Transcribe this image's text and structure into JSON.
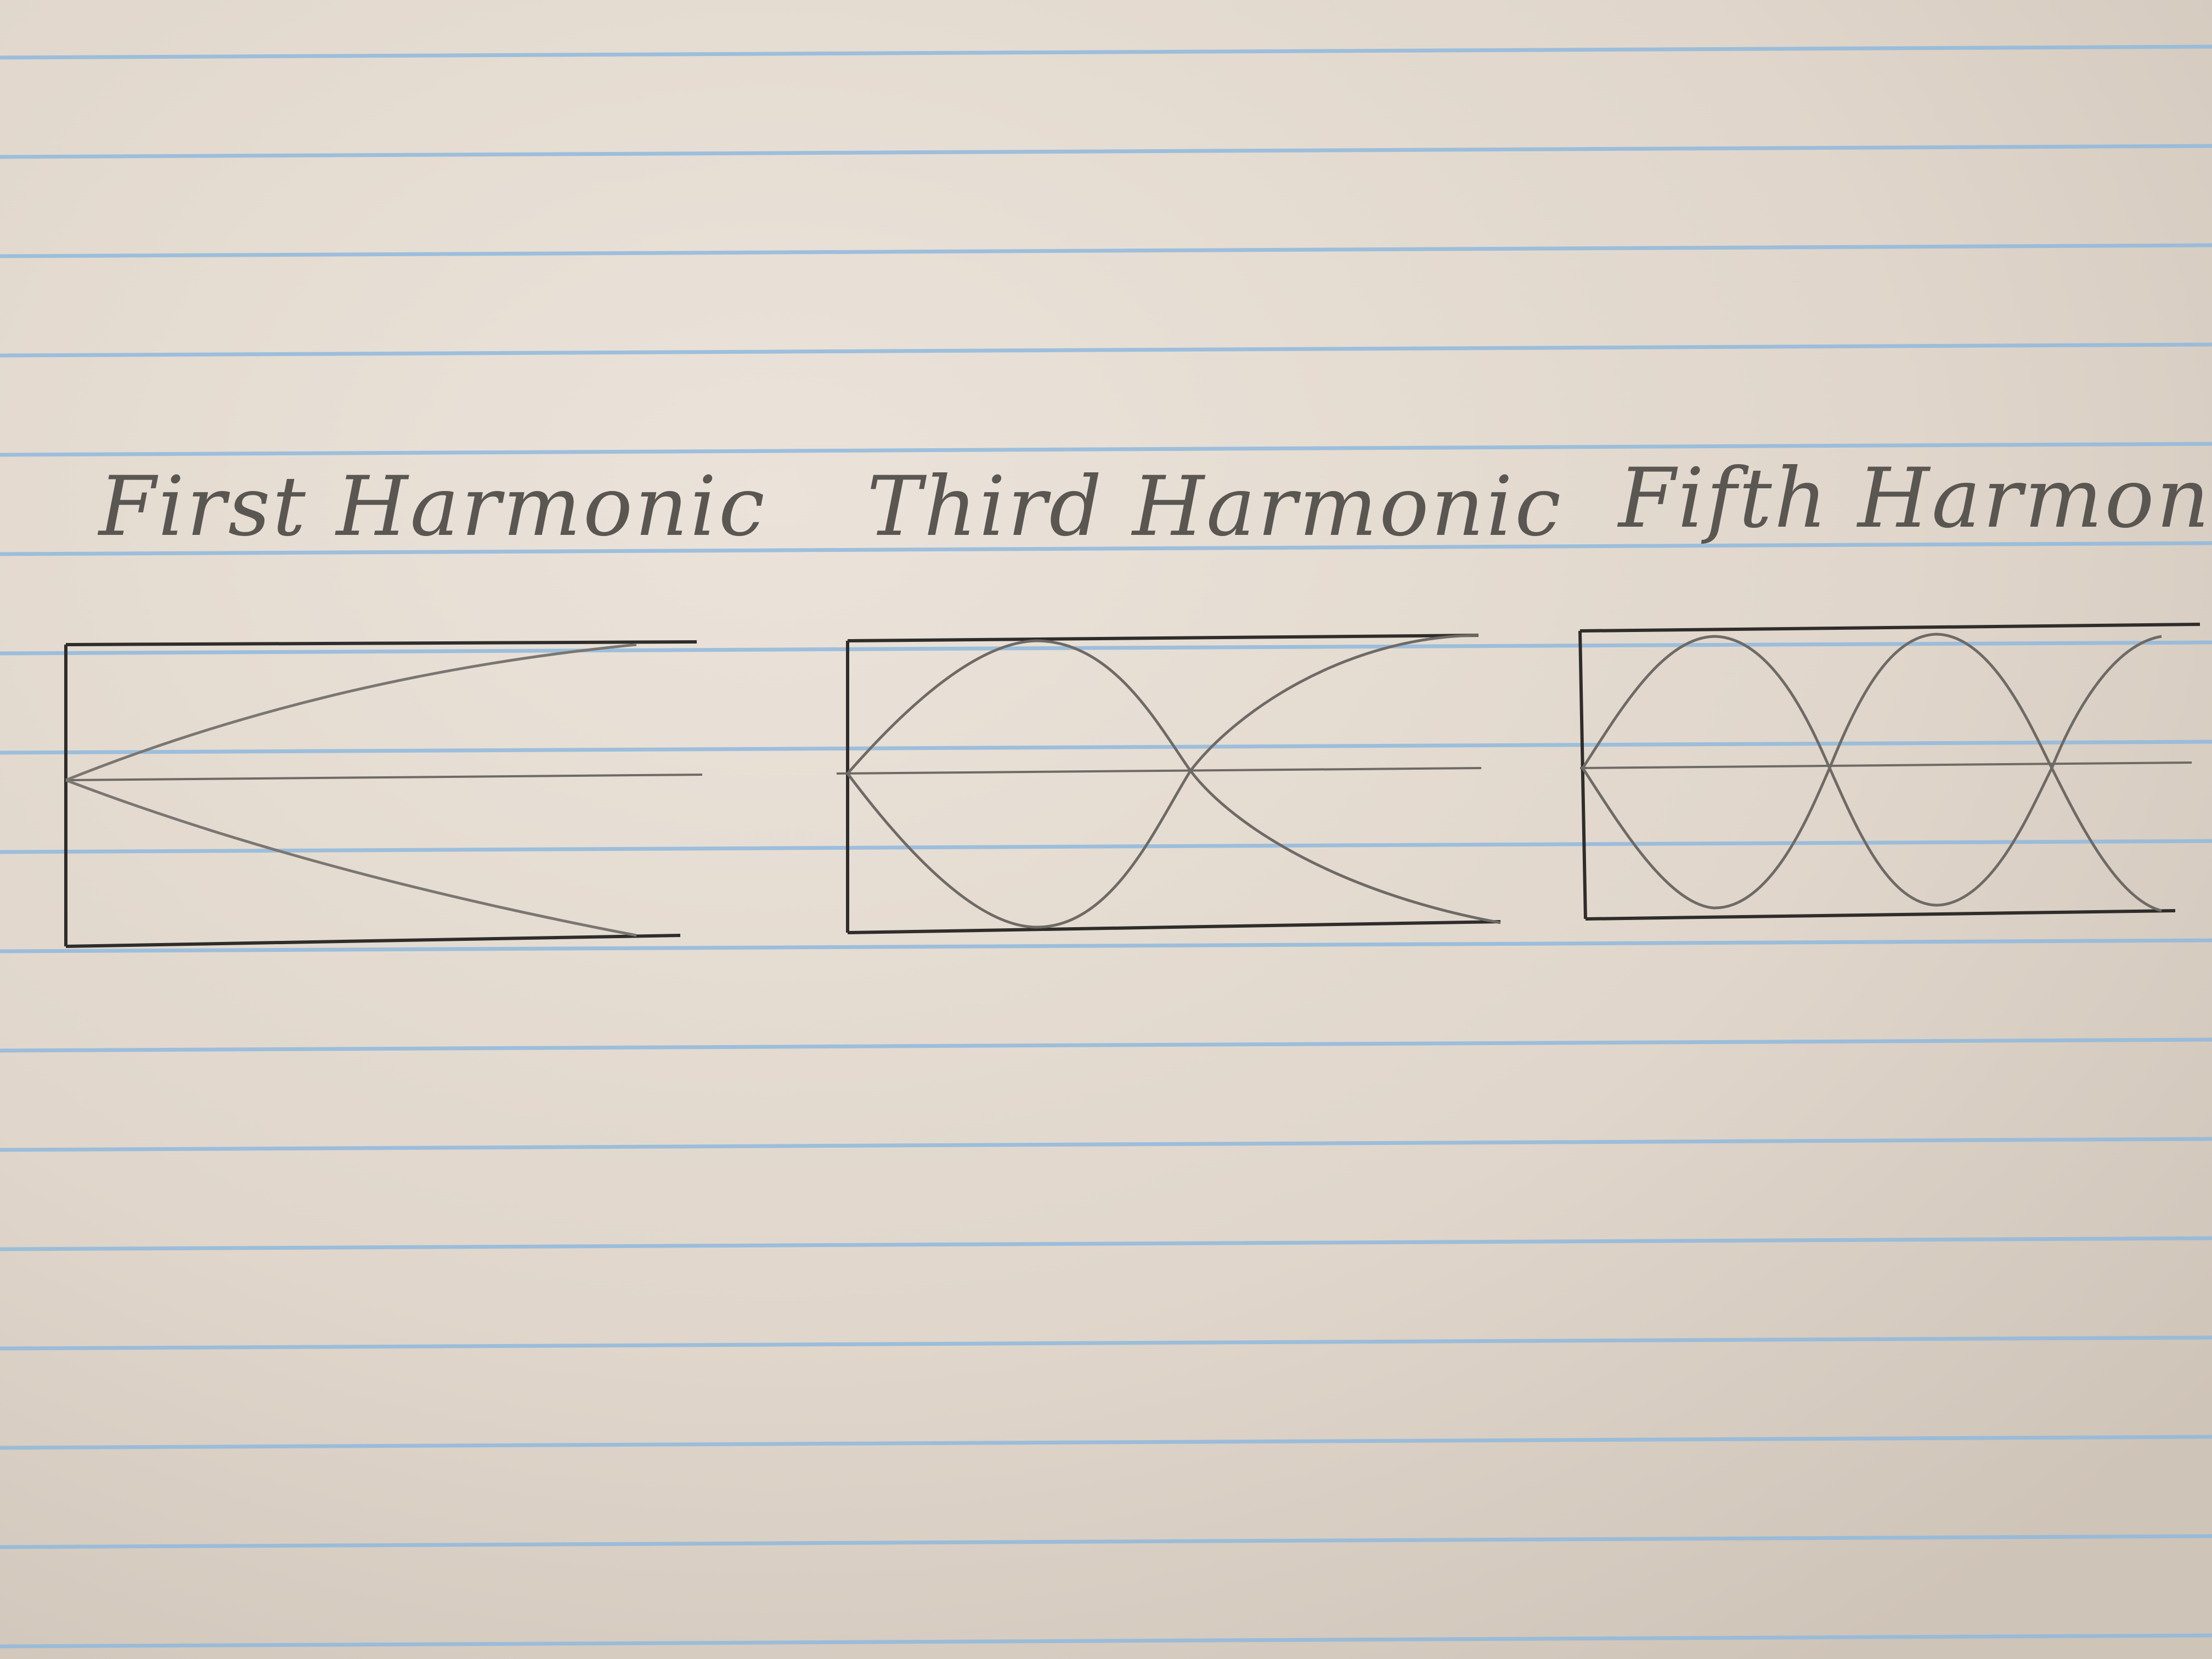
{
  "diagram": {
    "labels": {
      "first": "First Harmonic",
      "third": "Third Harmonic",
      "fifth": "Fifth Harmonic"
    },
    "panels": [
      {
        "harmonic": 1,
        "node_at": "right"
      },
      {
        "harmonic": 3,
        "node_at": "right"
      },
      {
        "harmonic": 5,
        "node_at": "right"
      }
    ],
    "colors": {
      "paper": "#e2d8ce",
      "rule_line": "#8fb8dd",
      "box_line": "#2f2d2b",
      "pencil": "#6e6a66"
    }
  }
}
